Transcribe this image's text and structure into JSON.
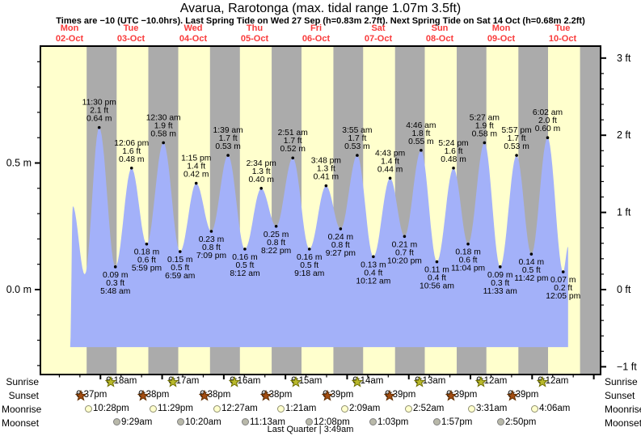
{
  "title": "Avarua, Rarotonga (max. tidal range 1.07m 3.5ft)",
  "subtitle": "Times are −10 (UTC −10.0hrs). Last Spring Tide on Wed 27 Sep (h=0.83m 2.7ft). Next Spring Tide on Sat 14 Oct (h=0.68m 2.2ft)",
  "colors": {
    "day": "#ffffcd",
    "night": "#ababab",
    "water": "#a3b1f9",
    "header_red": "#f93b3b",
    "axis": "#000000",
    "sunrise_fill": "#b9b92c",
    "sunrise_stroke": "#6e6e00",
    "sunset_fill": "#a34d12",
    "sunset_stroke": "#5f2d00",
    "moonrise_fill": "#ffffcd",
    "moonrise_stroke": "#8f8f70",
    "moonset_fill": "#b9b9aa",
    "moonset_stroke": "#7f7f7f"
  },
  "chart_data": {
    "type": "area",
    "title": "Avarua, Rarotonga tide curve",
    "x_axis_days": [
      {
        "name": "Mon",
        "date": "02-Oct"
      },
      {
        "name": "Tue",
        "date": "03-Oct"
      },
      {
        "name": "Wed",
        "date": "04-Oct"
      },
      {
        "name": "Thu",
        "date": "05-Oct"
      },
      {
        "name": "Fri",
        "date": "06-Oct"
      },
      {
        "name": "Sat",
        "date": "07-Oct"
      },
      {
        "name": "Sun",
        "date": "08-Oct"
      },
      {
        "name": "Mon",
        "date": "09-Oct"
      },
      {
        "name": "Tue",
        "date": "10-Oct"
      }
    ],
    "y_axis_left": [
      {
        "text": "0.5 m",
        "value": 0.5
      },
      {
        "text": "0.0 m",
        "value": 0.0
      }
    ],
    "y_axis_right": [
      {
        "text": "3 ft",
        "value": 3
      },
      {
        "text": "2 ft",
        "value": 2
      },
      {
        "text": "1 ft",
        "value": 1
      },
      {
        "text": "0 ft",
        "value": 0
      },
      {
        "text": "−1 ft",
        "value": -1
      }
    ],
    "tide_events": [
      {
        "kind": "high",
        "time": "11:30 pm",
        "ft": "2.1 ft",
        "m": "0.64 m",
        "t": 23.5,
        "h": 0.64
      },
      {
        "kind": "low",
        "time": "5:48 am",
        "ft": "0.3 ft",
        "m": "0.09 m",
        "t": 29.8,
        "h": 0.09
      },
      {
        "kind": "high",
        "time": "12:06 pm",
        "ft": "1.6 ft",
        "m": "0.48 m",
        "t": 36.1,
        "h": 0.48
      },
      {
        "kind": "low",
        "time": "5:59 pm",
        "ft": "0.6 ft",
        "m": "0.18 m",
        "t": 41.98,
        "h": 0.18
      },
      {
        "kind": "high",
        "time": "12:30 am",
        "ft": "1.9 ft",
        "m": "0.58 m",
        "t": 48.5,
        "h": 0.58
      },
      {
        "kind": "low",
        "time": "6:59 am",
        "ft": "0.5 ft",
        "m": "0.15 m",
        "t": 54.98,
        "h": 0.15
      },
      {
        "kind": "high",
        "time": "1:15 pm",
        "ft": "1.4 ft",
        "m": "0.42 m",
        "t": 61.25,
        "h": 0.42
      },
      {
        "kind": "low",
        "time": "7:09 pm",
        "ft": "0.8 ft",
        "m": "0.23 m",
        "t": 67.15,
        "h": 0.23
      },
      {
        "kind": "high",
        "time": "1:39 am",
        "ft": "1.7 ft",
        "m": "0.53 m",
        "t": 73.65,
        "h": 0.53
      },
      {
        "kind": "low",
        "time": "8:12 am",
        "ft": "0.5 ft",
        "m": "0.16 m",
        "t": 80.2,
        "h": 0.16
      },
      {
        "kind": "high",
        "time": "2:34 pm",
        "ft": "1.3 ft",
        "m": "0.40 m",
        "t": 86.57,
        "h": 0.4
      },
      {
        "kind": "low",
        "time": "8:22 pm",
        "ft": "0.8 ft",
        "m": "0.25 m",
        "t": 92.37,
        "h": 0.25
      },
      {
        "kind": "high",
        "time": "2:51 am",
        "ft": "1.7 ft",
        "m": "0.52 m",
        "t": 98.85,
        "h": 0.52
      },
      {
        "kind": "low",
        "time": "9:18 am",
        "ft": "0.5 ft",
        "m": "0.16 m",
        "t": 105.3,
        "h": 0.16
      },
      {
        "kind": "high",
        "time": "3:48 pm",
        "ft": "1.3 ft",
        "m": "0.41 m",
        "t": 111.8,
        "h": 0.41
      },
      {
        "kind": "low",
        "time": "9:27 pm",
        "ft": "0.8 ft",
        "m": "0.24 m",
        "t": 117.45,
        "h": 0.24
      },
      {
        "kind": "high",
        "time": "3:55 am",
        "ft": "1.7 ft",
        "m": "0.53 m",
        "t": 123.92,
        "h": 0.53
      },
      {
        "kind": "low",
        "time": "10:12 am",
        "ft": "0.4 ft",
        "m": "0.13 m",
        "t": 130.2,
        "h": 0.13
      },
      {
        "kind": "high",
        "time": "4:43 pm",
        "ft": "1.4 ft",
        "m": "0.44 m",
        "t": 136.72,
        "h": 0.44
      },
      {
        "kind": "low",
        "time": "10:20 pm",
        "ft": "0.7 ft",
        "m": "0.21 m",
        "t": 142.33,
        "h": 0.21
      },
      {
        "kind": "high",
        "time": "4:46 am",
        "ft": "1.8 ft",
        "m": "0.55 m",
        "t": 148.77,
        "h": 0.55
      },
      {
        "kind": "low",
        "time": "10:56 am",
        "ft": "0.4 ft",
        "m": "0.11 m",
        "t": 154.93,
        "h": 0.11
      },
      {
        "kind": "high",
        "time": "5:24 pm",
        "ft": "1.6 ft",
        "m": "0.48 m",
        "t": 161.4,
        "h": 0.48
      },
      {
        "kind": "low",
        "time": "11:04 pm",
        "ft": "0.6 ft",
        "m": "0.18 m",
        "t": 167.07,
        "h": 0.18
      },
      {
        "kind": "high",
        "time": "5:27 am",
        "ft": "1.9 ft",
        "m": "0.58 m",
        "t": 173.45,
        "h": 0.58
      },
      {
        "kind": "low",
        "time": "11:33 am",
        "ft": "0.3 ft",
        "m": "0.09 m",
        "t": 179.55,
        "h": 0.09
      },
      {
        "kind": "high",
        "time": "5:57 pm",
        "ft": "1.7 ft",
        "m": "0.53 m",
        "t": 185.95,
        "h": 0.53
      },
      {
        "kind": "low",
        "time": "11:42 pm",
        "ft": "0.5 ft",
        "m": "0.14 m",
        "t": 191.7,
        "h": 0.14
      },
      {
        "kind": "high",
        "time": "6:02 am",
        "ft": "2.0 ft",
        "m": "0.60 m",
        "t": 198.03,
        "h": 0.6
      },
      {
        "kind": "low",
        "time": "12:05 pm",
        "ft": "0.2 ft",
        "m": "0.07 m",
        "t": 204.08,
        "h": 0.07
      }
    ],
    "curve_unlabeled_points": [
      {
        "t": 12.2,
        "h": -0.227
      },
      {
        "t": 13.2,
        "h": 0.33
      },
      {
        "t": 17.9,
        "h": 0.06
      },
      {
        "t": 206.0,
        "h": 0.17
      }
    ],
    "baseline_m": -0.227,
    "t_range": [
      0.63,
      218.6
    ],
    "h_range": [
      -0.33,
      0.96
    ]
  },
  "almanac": {
    "rows": [
      {
        "label": "Sunrise",
        "icon": "sunrise",
        "entries": [
          {
            "time": "6:18am",
            "t": 30.3
          },
          {
            "time": "6:17am",
            "t": 54.28
          },
          {
            "time": "6:16am",
            "t": 78.27
          },
          {
            "time": "6:15am",
            "t": 102.25
          },
          {
            "time": "6:14am",
            "t": 126.23
          },
          {
            "time": "6:13am",
            "t": 150.22
          },
          {
            "time": "6:12am",
            "t": 174.2
          },
          {
            "time": "6:12am",
            "t": 198.2
          }
        ]
      },
      {
        "label": "Sunset",
        "icon": "sunset",
        "entries": [
          {
            "time": "6:37pm",
            "t": 18.62
          },
          {
            "time": "6:38pm",
            "t": 42.63
          },
          {
            "time": "6:38pm",
            "t": 66.63
          },
          {
            "time": "6:38pm",
            "t": 90.63
          },
          {
            "time": "6:39pm",
            "t": 114.65
          },
          {
            "time": "6:39pm",
            "t": 138.65
          },
          {
            "time": "6:39pm",
            "t": 162.65
          },
          {
            "time": "6:39pm",
            "t": 186.65
          }
        ]
      },
      {
        "label": "Moonrise",
        "icon": "moonrise",
        "entries": [
          {
            "time": "10:28pm",
            "t": 22.47
          },
          {
            "time": "11:29pm",
            "t": 47.48
          },
          {
            "time": "12:27am",
            "t": 72.45
          },
          {
            "time": "1:21am",
            "t": 97.35
          },
          {
            "time": "2:09am",
            "t": 122.15
          },
          {
            "time": "2:52am",
            "t": 146.87
          },
          {
            "time": "3:31am",
            "t": 171.52
          },
          {
            "time": "4:06am",
            "t": 196.1
          }
        ]
      },
      {
        "label": "Moonset",
        "icon": "moonset",
        "entries": [
          {
            "time": "9:29am",
            "t": 33.48
          },
          {
            "time": "10:20am",
            "t": 58.33
          },
          {
            "time": "11:13am",
            "t": 83.22
          },
          {
            "time": "12:08pm",
            "t": 108.13
          },
          {
            "time": "1:03pm",
            "t": 133.05
          },
          {
            "time": "1:57pm",
            "t": 157.95
          },
          {
            "time": "2:50pm",
            "t": 182.83
          }
        ]
      }
    ],
    "moon_phase": "Last Quarter | 3:49am"
  }
}
